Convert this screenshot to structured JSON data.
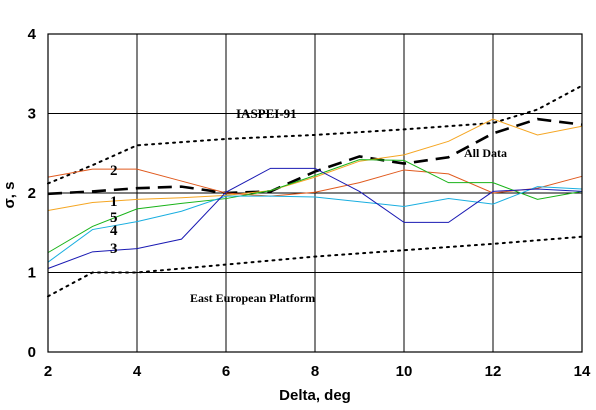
{
  "chart_data": {
    "type": "line",
    "xlabel": "Delta, deg",
    "ylabel": "σ, s",
    "xlim": [
      2,
      14
    ],
    "ylim": [
      0,
      4
    ],
    "x_ticks": [
      "2",
      "4",
      "6",
      "8",
      "10",
      "12",
      "14"
    ],
    "y_ticks": [
      "0",
      "1",
      "2",
      "3",
      "4"
    ],
    "grid": true,
    "series": [
      {
        "name": "IASPEI-91",
        "color": "#000000",
        "style": "dotted",
        "x": [
          2,
          3,
          4,
          6,
          8,
          10,
          12,
          13,
          14
        ],
        "y": [
          2.12,
          2.35,
          2.6,
          2.68,
          2.73,
          2.8,
          2.88,
          3.05,
          3.35
        ]
      },
      {
        "name": "East European Platform",
        "color": "#000000",
        "style": "dotted",
        "x": [
          2,
          3,
          4,
          6,
          8,
          10,
          12,
          14
        ],
        "y": [
          0.7,
          1.0,
          1.0,
          1.1,
          1.2,
          1.28,
          1.36,
          1.45
        ]
      },
      {
        "name": "All Data",
        "color": "#000000",
        "style": "dashed",
        "x": [
          2,
          3,
          4,
          5,
          6,
          7,
          8,
          9,
          10,
          11,
          12,
          13,
          14
        ],
        "y": [
          1.99,
          2.02,
          2.06,
          2.08,
          2.0,
          2.02,
          2.27,
          2.46,
          2.37,
          2.45,
          2.75,
          2.93,
          2.86
        ]
      },
      {
        "name": "orange",
        "color": "#f5a623",
        "style": "solid",
        "x": [
          2,
          3,
          4,
          5,
          6,
          7,
          8,
          9,
          10,
          11,
          12,
          13,
          14
        ],
        "y": [
          1.78,
          1.88,
          1.92,
          1.94,
          1.97,
          2.03,
          2.2,
          2.4,
          2.48,
          2.65,
          2.93,
          2.73,
          2.84
        ]
      },
      {
        "name": "2",
        "color": "#e05a1e",
        "style": "solid",
        "x": [
          2,
          3,
          4,
          5,
          6,
          7,
          8,
          9,
          10,
          11,
          12,
          13,
          14
        ],
        "y": [
          2.2,
          2.3,
          2.3,
          2.15,
          2.0,
          1.96,
          2.01,
          2.13,
          2.29,
          2.24,
          2.0,
          2.06,
          2.21
        ]
      },
      {
        "name": "1",
        "color": "#19b319",
        "style": "solid",
        "x": [
          2,
          3,
          4,
          5,
          6,
          7,
          8,
          9,
          10,
          11,
          12,
          13,
          14
        ],
        "y": [
          1.25,
          1.58,
          1.8,
          1.87,
          1.93,
          2.03,
          2.22,
          2.42,
          2.41,
          2.13,
          2.13,
          1.92,
          2.02
        ]
      },
      {
        "name": "5",
        "color": "#19aee0",
        "style": "solid",
        "x": [
          2,
          3,
          4,
          5,
          6,
          7,
          8,
          9,
          10,
          11,
          12,
          13,
          14
        ],
        "y": [
          1.13,
          1.54,
          1.64,
          1.77,
          1.96,
          1.96,
          1.95,
          1.89,
          1.83,
          1.93,
          1.86,
          2.08,
          2.05
        ]
      },
      {
        "name": "3",
        "color": "#1a1ab3",
        "style": "solid",
        "x": [
          2,
          3,
          4,
          5,
          6,
          7,
          8,
          9,
          10,
          11,
          12,
          13,
          14
        ],
        "y": [
          1.05,
          1.26,
          1.3,
          1.42,
          2.01,
          2.31,
          2.31,
          2.02,
          1.63,
          1.63,
          2.02,
          2.05,
          2.02
        ]
      }
    ],
    "annotations": {
      "iaspei": "IASPEI-91",
      "alldata": "All Data",
      "eep": "East European Platform",
      "l2": "2",
      "l1": "1",
      "l5": "5",
      "l4": "4",
      "l3": "3"
    }
  }
}
